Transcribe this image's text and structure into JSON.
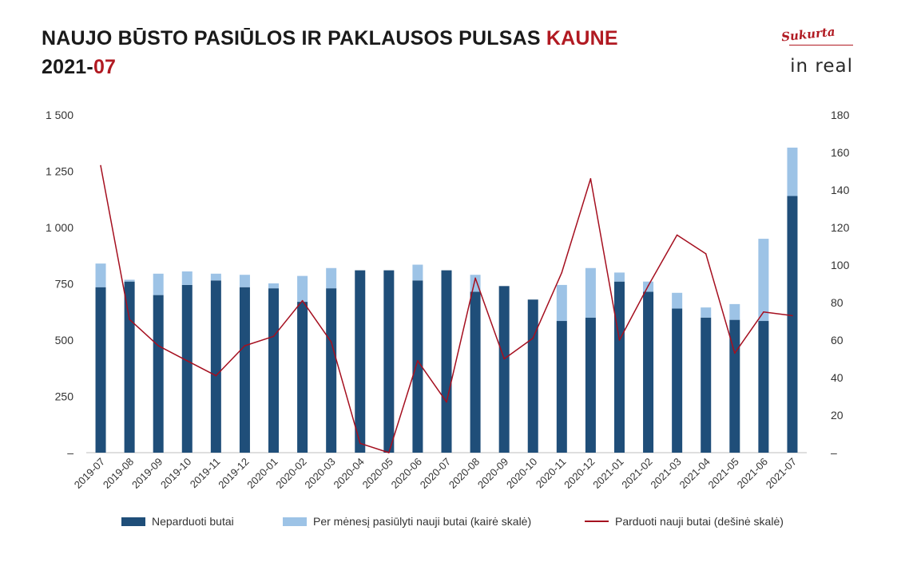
{
  "title": {
    "line1_main": "NAUJO BŪSTO PASIŪLOS IR PAKLAUSOS PULSAS ",
    "line1_accent": "KAUNE",
    "line2_main": "2021-",
    "line2_accent": "07"
  },
  "logo": {
    "tagline": "Sukurta",
    "brand": "in real"
  },
  "colors": {
    "unsold": "#1f4e79",
    "offered": "#9dc3e6",
    "sold": "#a50f1f",
    "accent": "#b11a22"
  },
  "chart_data": {
    "type": "bar",
    "stacked": true,
    "categories": [
      "2019-07",
      "2019-08",
      "2019-09",
      "2019-10",
      "2019-11",
      "2019-12",
      "2020-01",
      "2020-02",
      "2020-03",
      "2020-04",
      "2020-05",
      "2020-06",
      "2020-07",
      "2020-08",
      "2020-09",
      "2020-10",
      "2020-11",
      "2020-12",
      "2021-01",
      "2021-02",
      "2021-03",
      "2021-04",
      "2021-05",
      "2021-06",
      "2021-07"
    ],
    "series": [
      {
        "name": "Neparduoti butai",
        "type": "bar",
        "axis": "left",
        "values": [
          735,
          760,
          700,
          745,
          765,
          735,
          730,
          670,
          730,
          810,
          810,
          765,
          810,
          715,
          740,
          680,
          585,
          600,
          760,
          715,
          640,
          600,
          590,
          585,
          1140
        ]
      },
      {
        "name": "Per mėnesį pasiūlyti nauji butai (kairė skalė)",
        "type": "bar",
        "axis": "left",
        "values": [
          105,
          8,
          95,
          60,
          30,
          55,
          22,
          115,
          90,
          0,
          0,
          70,
          0,
          75,
          0,
          0,
          160,
          220,
          40,
          45,
          70,
          45,
          70,
          365,
          215
        ]
      },
      {
        "name": "Parduoti nauji butai (dešinė skalė)",
        "type": "line",
        "axis": "right",
        "values": [
          153,
          71,
          57,
          49,
          41,
          57,
          62,
          81,
          59,
          5,
          0,
          49,
          27,
          93,
          50,
          61,
          96,
          146,
          60,
          89,
          116,
          106,
          53,
          75,
          73
        ]
      }
    ],
    "y_left": {
      "min": 0,
      "max": 1500,
      "ticks": [
        "–",
        "250",
        "500",
        "750",
        "1 000",
        "1 250",
        "1 500"
      ]
    },
    "y_right": {
      "min": 0,
      "max": 180,
      "ticks": [
        "–",
        "20",
        "40",
        "60",
        "80",
        "100",
        "120",
        "140",
        "160",
        "180"
      ]
    },
    "grid": false,
    "legend_position": "bottom"
  }
}
